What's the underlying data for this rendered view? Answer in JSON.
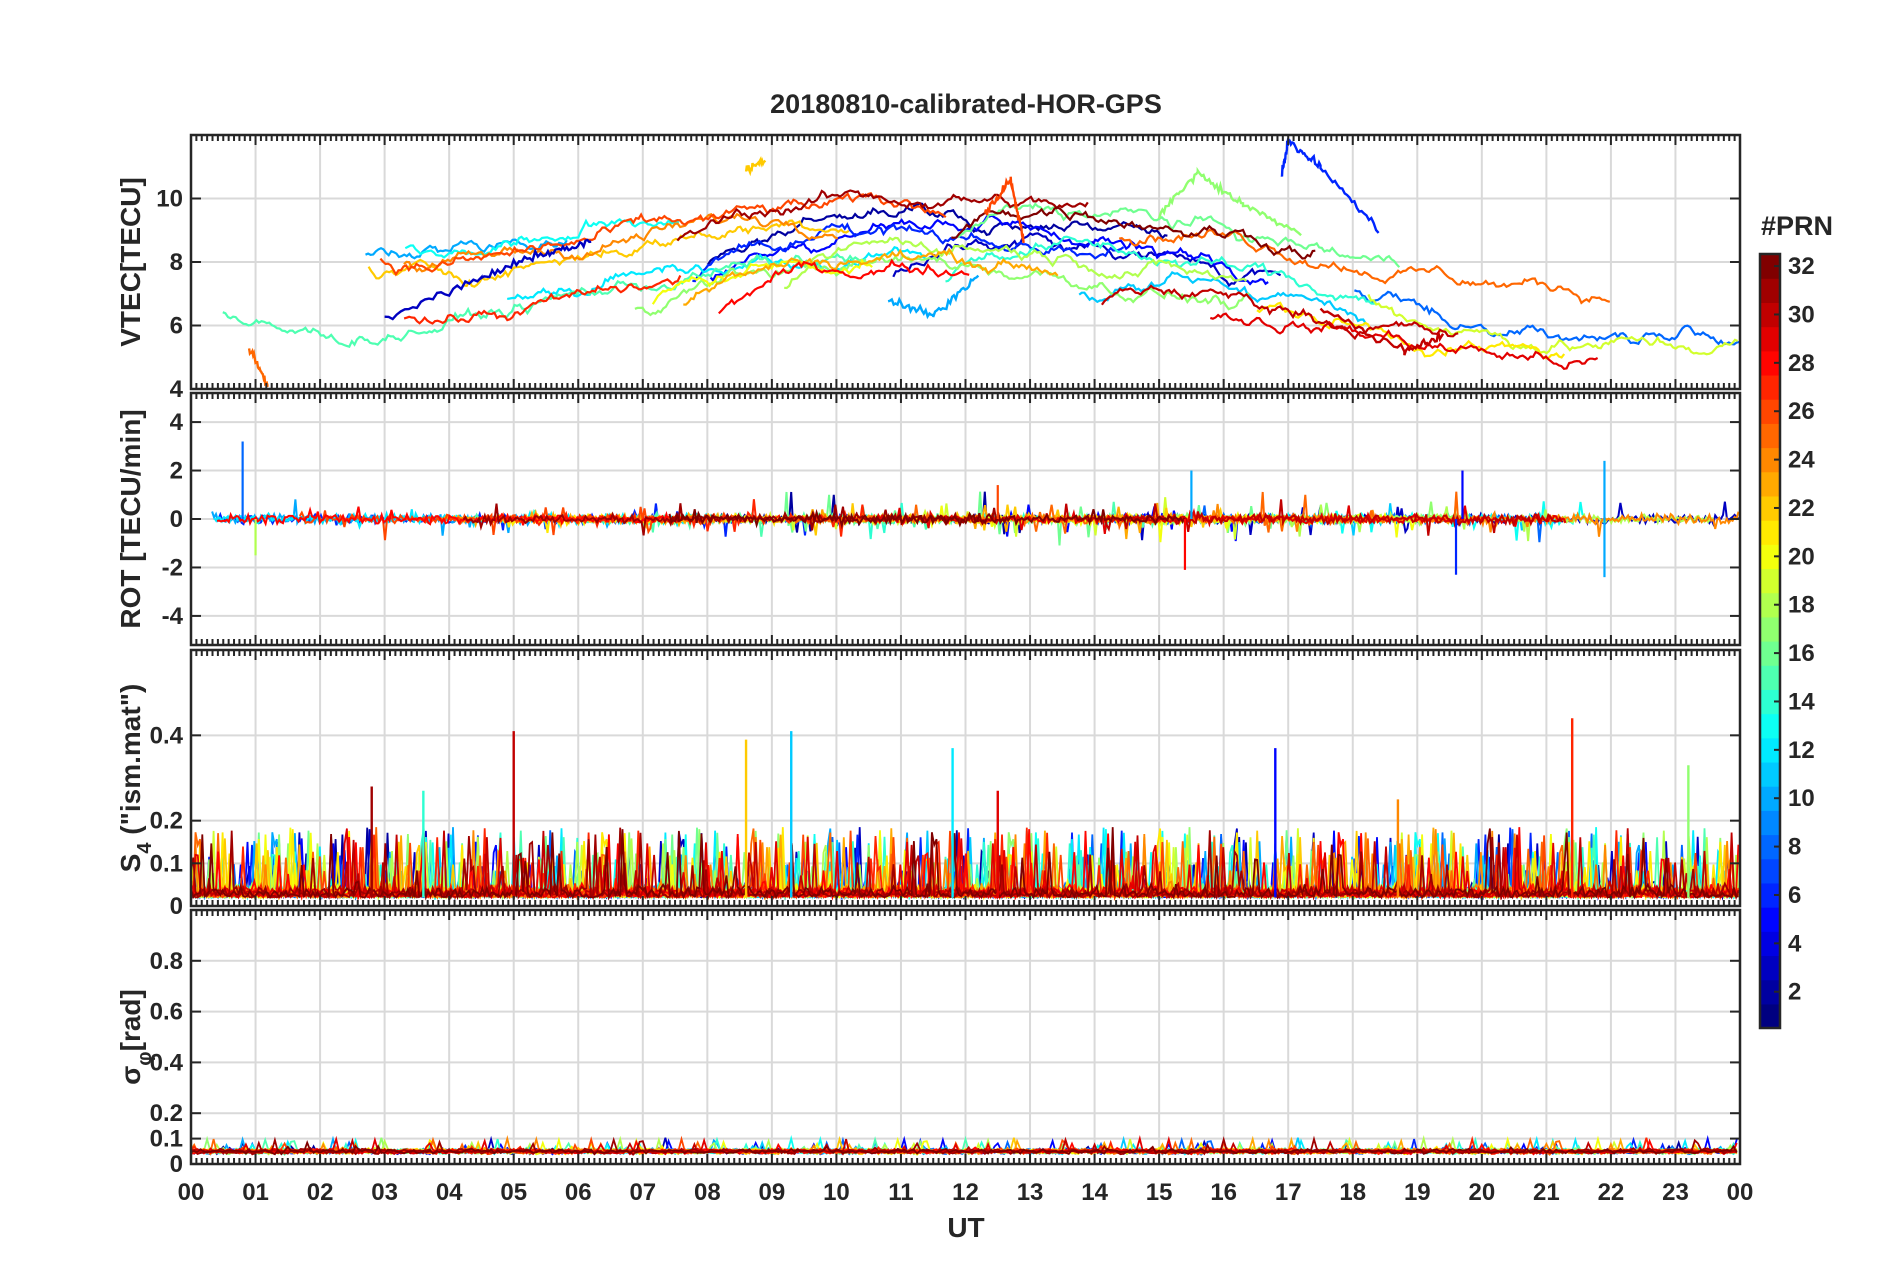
{
  "chart_data": {
    "type": "line",
    "title": "20180810-calibrated-HOR-GPS",
    "xlabel": "UT",
    "x_ticks": [
      "00",
      "01",
      "02",
      "03",
      "04",
      "05",
      "06",
      "07",
      "08",
      "09",
      "10",
      "11",
      "12",
      "13",
      "14",
      "15",
      "16",
      "17",
      "18",
      "19",
      "20",
      "21",
      "22",
      "23",
      "00"
    ],
    "xlim": [
      0,
      24
    ],
    "panels": [
      {
        "id": "vtec",
        "ylabel": "VTEC[TECU]",
        "ylim": [
          4,
          12
        ],
        "y_ticks": [
          4,
          6,
          8,
          10
        ],
        "y_tick_labels": [
          "4",
          "6",
          "8",
          "10"
        ],
        "baseline": 6,
        "series_summary": [
          {
            "name": "PRN 3",
            "x": [
              3.0,
              4.5,
              5.5,
              6.2
            ],
            "y": [
              6.2,
              7.5,
              8.3,
              8.6
            ]
          },
          {
            "name": "PRN 10",
            "x": [
              10.8,
              11.5,
              12.2
            ],
            "y": [
              6.8,
              6.3,
              7.6
            ]
          },
          {
            "name": "PRN 6",
            "x": [
              16.9,
              17.0,
              17.5,
              18.4
            ],
            "y": [
              10.8,
              11.8,
              11.0,
              9.0
            ]
          },
          {
            "name": "PRN 17",
            "x": [
              15.0,
              15.6,
              16.3,
              17.2
            ],
            "y": [
              9.5,
              10.8,
              9.8,
              8.9
            ]
          },
          {
            "name": "PRN 26",
            "x": [
              12.3,
              12.7,
              12.9
            ],
            "y": [
              9.5,
              10.6,
              8.7
            ]
          },
          {
            "name": "PRN 30",
            "x": [
              17.5,
              18.8,
              19.4
            ],
            "y": [
              6.5,
              5.2,
              5.7
            ]
          },
          {
            "name": "PRN 22",
            "x": [
              8.6,
              8.9
            ],
            "y": [
              10.9,
              11.2
            ]
          },
          {
            "name": "PRN 25",
            "x": [
              0.9,
              1.2
            ],
            "y": [
              5.3,
              4.1
            ]
          }
        ]
      },
      {
        "id": "rot",
        "ylabel": "ROT [TECU/min]",
        "ylim": [
          -5.2,
          5.2
        ],
        "y_ticks": [
          -4,
          -2,
          0,
          2,
          4
        ],
        "y_tick_labels": [
          "-4",
          "-2",
          "0",
          "2",
          "4"
        ],
        "baseline": 0,
        "spikes": [
          {
            "x": 0.8,
            "y": 3.2
          },
          {
            "x": 1.0,
            "y": -1.5
          },
          {
            "x": 15.4,
            "y": -2.1
          },
          {
            "x": 15.5,
            "y": 2.0
          },
          {
            "x": 19.6,
            "y": -2.3
          },
          {
            "x": 19.7,
            "y": 2.0
          },
          {
            "x": 21.9,
            "y": 2.4
          },
          {
            "x": 21.9,
            "y": -2.4
          },
          {
            "x": 12.5,
            "y": 1.4
          }
        ]
      },
      {
        "id": "s4",
        "ylabel": "S4 (\"ism.mat\")",
        "ylabel_main": "S",
        "ylabel_sub": "4",
        "ylabel_rest": " (\"ism.mat\")",
        "ylim": [
          0,
          0.6
        ],
        "y_ticks": [
          0,
          0.1,
          0.2,
          0.4
        ],
        "y_tick_labels": [
          "0",
          "0.1",
          "0.2",
          "0.4"
        ],
        "baseline": 0.02,
        "spikes": [
          {
            "x": 5.0,
            "y": 0.41
          },
          {
            "x": 9.3,
            "y": 0.41
          },
          {
            "x": 8.6,
            "y": 0.39
          },
          {
            "x": 21.4,
            "y": 0.44
          },
          {
            "x": 16.8,
            "y": 0.37
          },
          {
            "x": 11.8,
            "y": 0.37
          },
          {
            "x": 23.2,
            "y": 0.33
          },
          {
            "x": 12.5,
            "y": 0.27
          },
          {
            "x": 2.8,
            "y": 0.28
          },
          {
            "x": 3.6,
            "y": 0.27
          },
          {
            "x": 18.7,
            "y": 0.25
          }
        ]
      },
      {
        "id": "sigma",
        "ylabel": "σφ[rad]",
        "ylabel_main": "σ",
        "ylabel_sub": "φ",
        "ylabel_rest": "[rad]",
        "ylim": [
          0,
          1.0
        ],
        "y_ticks": [
          0,
          0.1,
          0.2,
          0.4,
          0.6,
          0.8
        ],
        "y_tick_labels": [
          "0",
          "0.1",
          "0.2",
          "0.4",
          "0.6",
          "0.8"
        ],
        "baseline": 0.05
      }
    ],
    "colorbar": {
      "title": "#PRN",
      "range": [
        1,
        32
      ],
      "ticks": [
        2,
        4,
        6,
        8,
        10,
        12,
        14,
        16,
        18,
        20,
        22,
        24,
        26,
        28,
        30,
        32
      ],
      "tick_labels": [
        "2",
        "4",
        "6",
        "8",
        "10",
        "12",
        "14",
        "16",
        "18",
        "20",
        "22",
        "24",
        "26",
        "28",
        "30",
        "32"
      ],
      "colormap": "jet"
    },
    "grid": true
  }
}
